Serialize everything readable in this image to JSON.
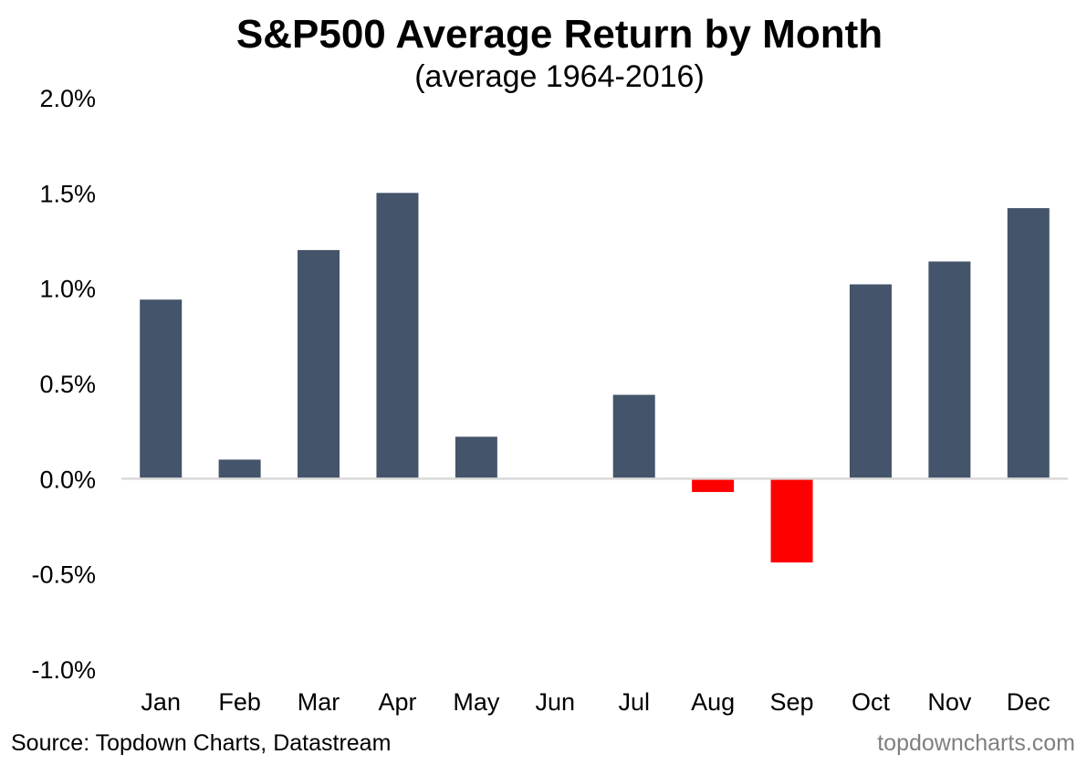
{
  "chart_data": {
    "type": "bar",
    "title": "S&P500 Average Return by Month",
    "subtitle": "(average 1964-2016)",
    "xlabel": "",
    "ylabel": "",
    "categories": [
      "Jan",
      "Feb",
      "Mar",
      "Apr",
      "May",
      "Jun",
      "Jul",
      "Aug",
      "Sep",
      "Oct",
      "Nov",
      "Dec"
    ],
    "values": [
      0.94,
      0.1,
      1.2,
      1.5,
      0.22,
      0.0,
      0.44,
      -0.07,
      -0.44,
      1.02,
      1.14,
      1.42
    ],
    "unit": "%",
    "ylim": [
      -1.0,
      2.0
    ],
    "yticks": [
      2.0,
      1.5,
      1.0,
      0.5,
      0.0,
      -0.5,
      -1.0
    ],
    "ytick_labels": [
      "2.0%",
      "1.5%",
      "1.0%",
      "0.5%",
      "0.0%",
      "-0.5%",
      "-1.0%"
    ],
    "grid": false,
    "legend": "none",
    "colors": {
      "positive": "#44546a",
      "negative": "#ff0000",
      "zero_line": "#d9d9d9"
    }
  },
  "footer": {
    "source": "Source: Topdown Charts, Datastream",
    "watermark": "topdowncharts.com"
  }
}
